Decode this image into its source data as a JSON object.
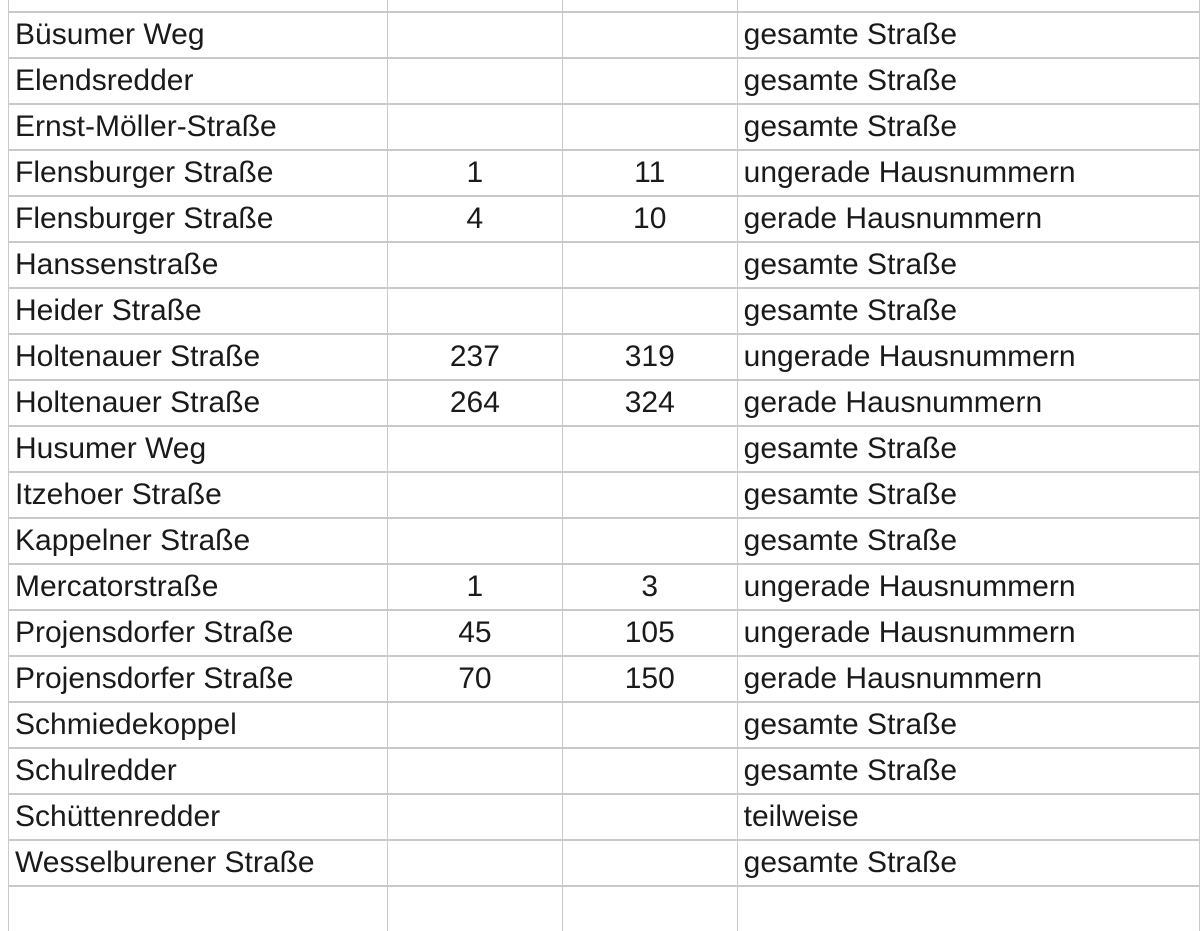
{
  "rows": [
    {
      "street": "",
      "from": "",
      "to": "",
      "note": ""
    },
    {
      "street": "Büsumer Weg",
      "from": "",
      "to": "",
      "note": "gesamte Straße"
    },
    {
      "street": "Elendsredder",
      "from": "",
      "to": "",
      "note": "gesamte Straße"
    },
    {
      "street": "Ernst-Möller-Straße",
      "from": "",
      "to": "",
      "note": "gesamte Straße"
    },
    {
      "street": "Flensburger Straße",
      "from": "1",
      "to": "11",
      "note": "ungerade Hausnummern"
    },
    {
      "street": "Flensburger Straße",
      "from": "4",
      "to": "10",
      "note": "gerade Hausnummern"
    },
    {
      "street": "Hanssenstraße",
      "from": "",
      "to": "",
      "note": "gesamte Straße"
    },
    {
      "street": "Heider Straße",
      "from": "",
      "to": "",
      "note": "gesamte Straße"
    },
    {
      "street": "Holtenauer Straße",
      "from": "237",
      "to": "319",
      "note": "ungerade Hausnummern"
    },
    {
      "street": "Holtenauer Straße",
      "from": "264",
      "to": "324",
      "note": "gerade Hausnummern"
    },
    {
      "street": "Husumer Weg",
      "from": "",
      "to": "",
      "note": "gesamte Straße"
    },
    {
      "street": "Itzehoer Straße",
      "from": "",
      "to": "",
      "note": "gesamte Straße"
    },
    {
      "street": "Kappelner Straße",
      "from": "",
      "to": "",
      "note": "gesamte Straße"
    },
    {
      "street": "Mercatorstraße",
      "from": "1",
      "to": "3",
      "note": "ungerade Hausnummern"
    },
    {
      "street": "Projensdorfer Straße",
      "from": "45",
      "to": "105",
      "note": "ungerade Hausnummern"
    },
    {
      "street": "Projensdorfer Straße",
      "from": "70",
      "to": "150",
      "note": "gerade Hausnummern"
    },
    {
      "street": "Schmiedekoppel",
      "from": "",
      "to": "",
      "note": "gesamte Straße"
    },
    {
      "street": "Schulredder",
      "from": "",
      "to": "",
      "note": "gesamte Straße"
    },
    {
      "street": "Schüttenredder",
      "from": "",
      "to": "",
      "note": "teilweise"
    },
    {
      "street": "Wesselburener Straße",
      "from": "",
      "to": "",
      "note": "gesamte Straße"
    },
    {
      "street": "",
      "from": "",
      "to": "",
      "note": ""
    }
  ]
}
